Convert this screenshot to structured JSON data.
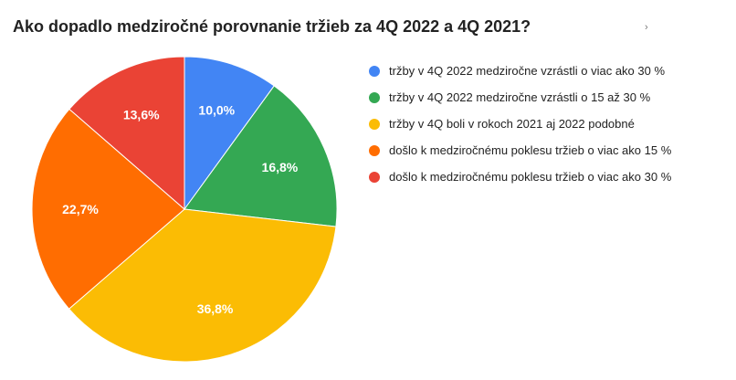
{
  "chart_data": {
    "type": "pie",
    "title": "Ako dopadlo medziročné porovnanie tržieb za 4Q 2022 a 4Q 2021?",
    "legend_position": "right",
    "slices": [
      {
        "label": "tržby v 4Q 2022 medziročne vzrástli o viac ako 30 %",
        "value": 10.0,
        "display": "10,0%",
        "color": "#4285F4"
      },
      {
        "label": "tržby v 4Q 2022 medziročne vzrástli o 15 až 30 %",
        "value": 16.8,
        "display": "16,8%",
        "color": "#34A853"
      },
      {
        "label": "tržby v 4Q boli v rokoch 2021 aj 2022 podobné",
        "value": 36.8,
        "display": "36,8%",
        "color": "#FBBC04"
      },
      {
        "label": "došlo k medziročnému poklesu tržieb o viac ako 15 %",
        "value": 22.7,
        "display": "22,7%",
        "color": "#FF6D01"
      },
      {
        "label": "došlo k medziročnému poklesu tržieb o viac ako 30 %",
        "value": 13.6,
        "display": "13,6%",
        "color": "#EA4335"
      }
    ]
  },
  "menu": {
    "icon": "more-options-icon",
    "glyph": "›"
  }
}
